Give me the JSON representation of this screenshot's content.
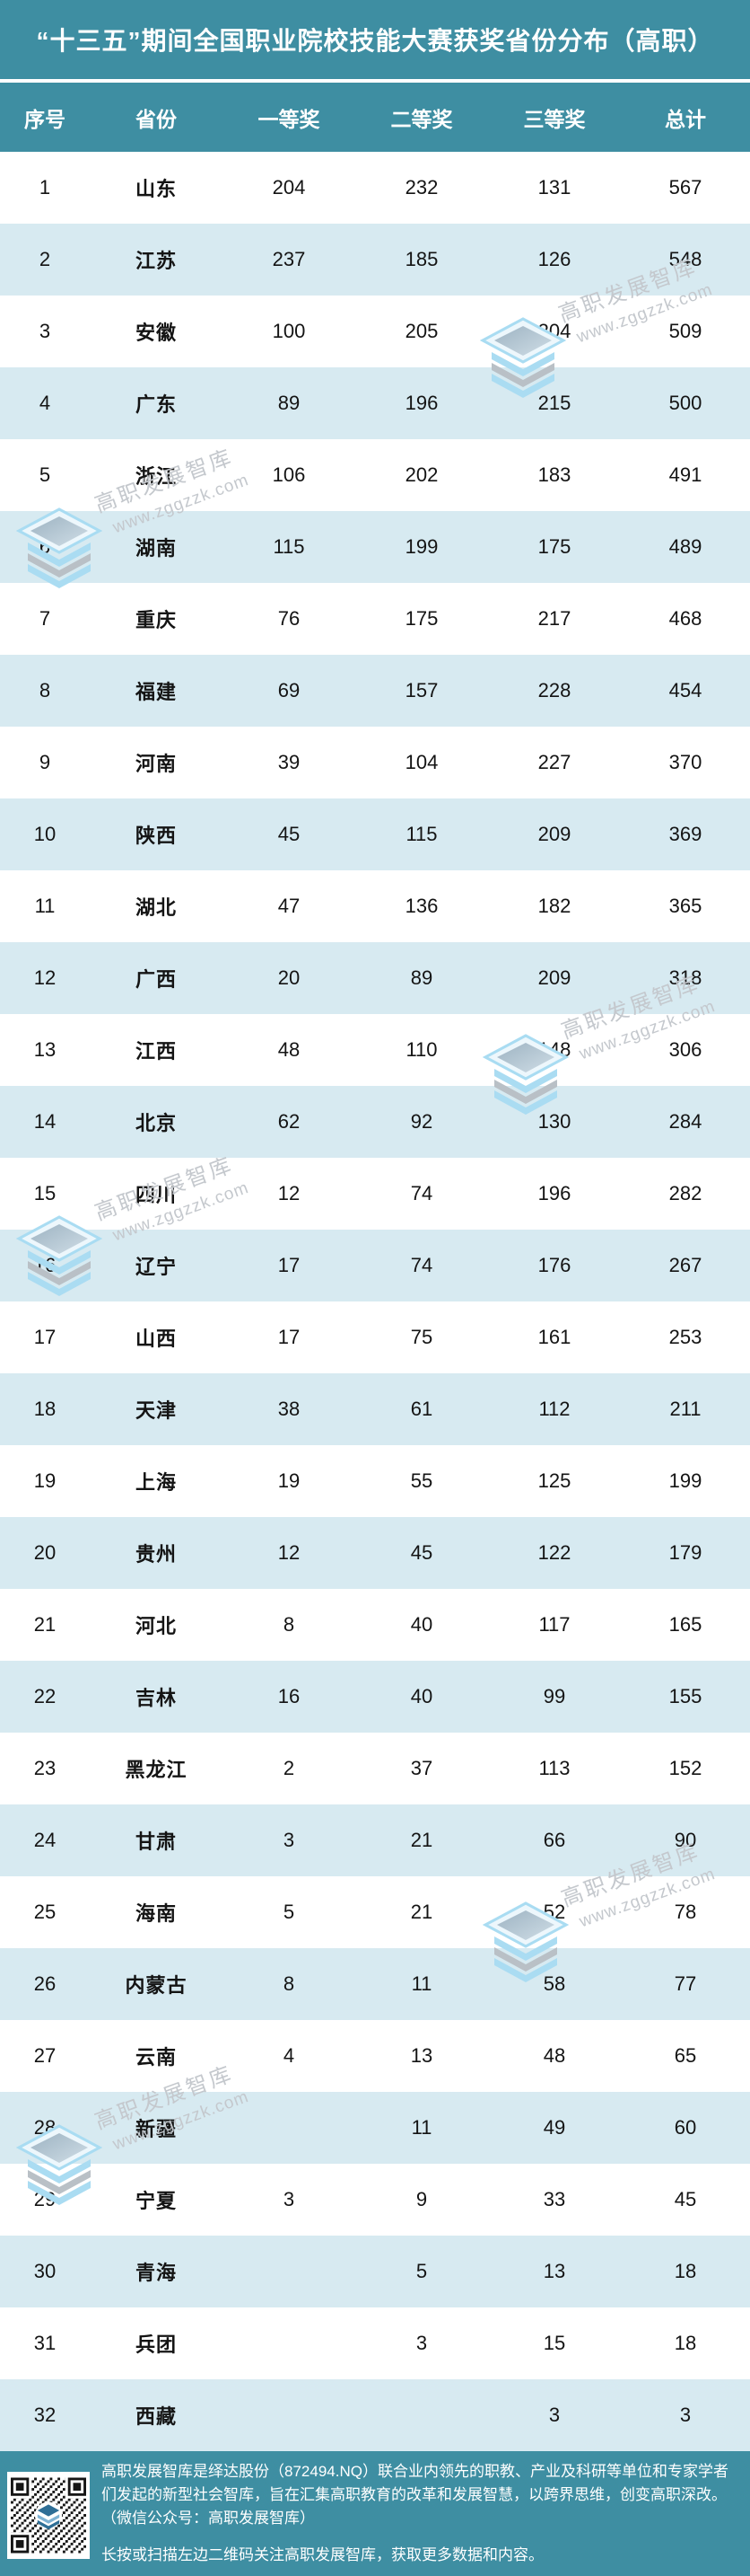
{
  "title": "“十三五”期间全国职业院校技能大赛获奖省份分布（高职）",
  "chart_data": {
    "type": "table",
    "title": "“十三五”期间全国职业院校技能大赛获奖省份分布（高职）",
    "columns": [
      "序号",
      "省份",
      "一等奖",
      "二等奖",
      "三等奖",
      "总计"
    ],
    "rows": [
      [
        "1",
        "山东",
        "204",
        "232",
        "131",
        "567"
      ],
      [
        "2",
        "江苏",
        "237",
        "185",
        "126",
        "548"
      ],
      [
        "3",
        "安徽",
        "100",
        "205",
        "204",
        "509"
      ],
      [
        "4",
        "广东",
        "89",
        "196",
        "215",
        "500"
      ],
      [
        "5",
        "浙江",
        "106",
        "202",
        "183",
        "491"
      ],
      [
        "6",
        "湖南",
        "115",
        "199",
        "175",
        "489"
      ],
      [
        "7",
        "重庆",
        "76",
        "175",
        "217",
        "468"
      ],
      [
        "8",
        "福建",
        "69",
        "157",
        "228",
        "454"
      ],
      [
        "9",
        "河南",
        "39",
        "104",
        "227",
        "370"
      ],
      [
        "10",
        "陕西",
        "45",
        "115",
        "209",
        "369"
      ],
      [
        "11",
        "湖北",
        "47",
        "136",
        "182",
        "365"
      ],
      [
        "12",
        "广西",
        "20",
        "89",
        "209",
        "318"
      ],
      [
        "13",
        "江西",
        "48",
        "110",
        "148",
        "306"
      ],
      [
        "14",
        "北京",
        "62",
        "92",
        "130",
        "284"
      ],
      [
        "15",
        "四川",
        "12",
        "74",
        "196",
        "282"
      ],
      [
        "16",
        "辽宁",
        "17",
        "74",
        "176",
        "267"
      ],
      [
        "17",
        "山西",
        "17",
        "75",
        "161",
        "253"
      ],
      [
        "18",
        "天津",
        "38",
        "61",
        "112",
        "211"
      ],
      [
        "19",
        "上海",
        "19",
        "55",
        "125",
        "199"
      ],
      [
        "20",
        "贵州",
        "12",
        "45",
        "122",
        "179"
      ],
      [
        "21",
        "河北",
        "8",
        "40",
        "117",
        "165"
      ],
      [
        "22",
        "吉林",
        "16",
        "40",
        "99",
        "155"
      ],
      [
        "23",
        "黑龙江",
        "2",
        "37",
        "113",
        "152"
      ],
      [
        "24",
        "甘肃",
        "3",
        "21",
        "66",
        "90"
      ],
      [
        "25",
        "海南",
        "5",
        "21",
        "52",
        "78"
      ],
      [
        "26",
        "内蒙古",
        "8",
        "11",
        "58",
        "77"
      ],
      [
        "27",
        "云南",
        "4",
        "13",
        "48",
        "65"
      ],
      [
        "28",
        "新疆",
        "",
        "11",
        "49",
        "60"
      ],
      [
        "29",
        "宁夏",
        "3",
        "9",
        "33",
        "45"
      ],
      [
        "30",
        "青海",
        "",
        "5",
        "13",
        "18"
      ],
      [
        "31",
        "兵团",
        "",
        "3",
        "15",
        "18"
      ],
      [
        "32",
        "西藏",
        "",
        "",
        "3",
        "3"
      ]
    ]
  },
  "watermark": {
    "brand": "高职发展智库",
    "url": "www.zggzzk.com"
  },
  "footer": {
    "about": "高职发展智库是绎达股份（872494.NQ）联合业内领先的职教、产业及科研等单位和专家学者们发起的新型社会智库，旨在汇集高职教育的改革和发展智慧，以跨界思维，创变高职深改。（微信公众号：高职发展智库）",
    "scan_hint": "长按或扫描左边二维码关注高职发展智库，获取更多数据和内容。"
  },
  "colors": {
    "teal": "#3E8EA2",
    "row_alt": "#D7EAF1",
    "watermark_text": "#C4C8CD"
  }
}
